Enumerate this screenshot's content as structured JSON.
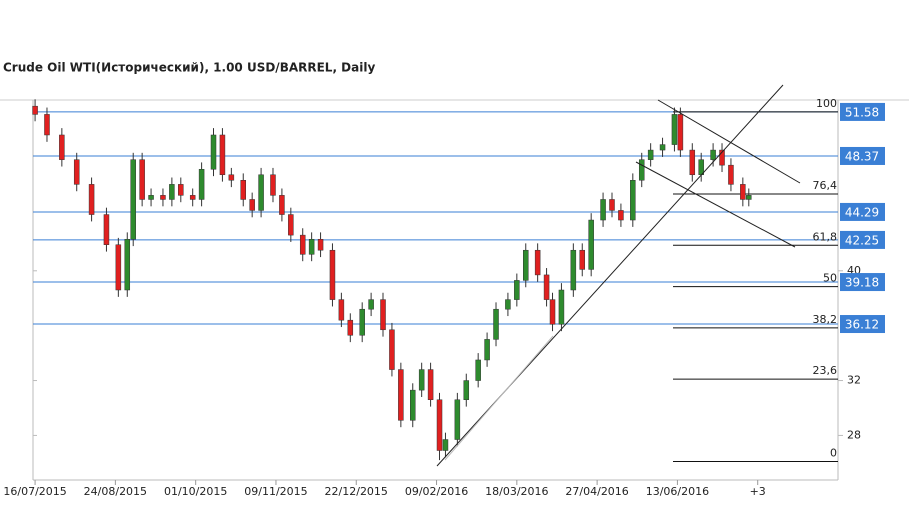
{
  "chart_data": {
    "type": "candlestick",
    "title": "Crude Oil WTI(Исторический), 1.00 USD/BARREL, Daily",
    "x": [
      0,
      4,
      9,
      14,
      19,
      24,
      28,
      31,
      33,
      36,
      39,
      43,
      46,
      49,
      53,
      56,
      60,
      63,
      66,
      70,
      73,
      76,
      80,
      83,
      86,
      90,
      93,
      96,
      100,
      103,
      106,
      110,
      113,
      117,
      120,
      123,
      127,
      130,
      133,
      136,
      138,
      142,
      145,
      149,
      152,
      155,
      159,
      162,
      165,
      169,
      172,
      174,
      177,
      181,
      184,
      187,
      191,
      194,
      197,
      201,
      204,
      207,
      211,
      215,
      217,
      221,
      224,
      228,
      231,
      234,
      238,
      240
    ],
    "open": [
      52.0,
      51.4,
      49.9,
      48.1,
      46.3,
      44.1,
      41.9,
      38.6,
      42.3,
      48.1,
      45.2,
      45.5,
      45.2,
      46.3,
      45.5,
      45.2,
      47.4,
      49.9,
      47.0,
      46.6,
      45.2,
      44.4,
      47.0,
      45.5,
      44.1,
      42.6,
      41.2,
      42.3,
      41.5,
      37.9,
      36.4,
      35.3,
      37.2,
      37.9,
      35.7,
      32.8,
      29.1,
      31.3,
      32.8,
      30.6,
      26.9,
      27.7,
      30.6,
      32.0,
      33.5,
      35.0,
      37.2,
      37.9,
      39.3,
      41.5,
      39.7,
      37.9,
      36.1,
      38.6,
      41.5,
      40.1,
      43.7,
      45.2,
      44.4,
      43.7,
      46.6,
      48.1,
      48.8,
      49.2,
      51.4,
      48.8,
      47.0,
      48.1,
      48.8,
      47.7,
      46.3,
      45.2
    ],
    "high": [
      52.5,
      51.9,
      50.4,
      48.6,
      46.8,
      44.6,
      42.4,
      42.8,
      48.6,
      48.6,
      46.0,
      46.0,
      46.8,
      46.8,
      46.0,
      47.9,
      50.4,
      50.4,
      47.5,
      47.1,
      45.7,
      47.5,
      47.5,
      46.0,
      44.6,
      43.1,
      42.8,
      42.8,
      42.0,
      38.4,
      36.9,
      37.7,
      38.4,
      38.4,
      36.2,
      33.3,
      31.8,
      33.3,
      33.3,
      31.1,
      28.2,
      31.1,
      32.5,
      34.0,
      35.5,
      37.7,
      38.4,
      39.8,
      42.0,
      42.0,
      40.2,
      38.4,
      39.1,
      42.0,
      42.0,
      44.2,
      45.7,
      45.7,
      44.9,
      47.1,
      48.6,
      49.3,
      49.7,
      51.9,
      51.9,
      49.3,
      48.6,
      49.3,
      49.3,
      48.2,
      46.8,
      46.0
    ],
    "low": [
      50.9,
      49.4,
      47.6,
      45.8,
      43.6,
      41.4,
      38.1,
      38.1,
      41.8,
      44.7,
      44.7,
      44.7,
      44.7,
      45.0,
      44.7,
      44.7,
      46.9,
      46.5,
      46.1,
      44.7,
      43.9,
      43.9,
      45.0,
      43.6,
      42.1,
      40.7,
      40.7,
      41.0,
      37.4,
      35.9,
      34.8,
      34.8,
      36.7,
      35.2,
      32.3,
      28.6,
      28.6,
      30.8,
      30.1,
      26.2,
      26.4,
      27.2,
      30.1,
      31.5,
      33.0,
      34.5,
      36.7,
      37.4,
      38.8,
      39.2,
      37.4,
      35.6,
      35.6,
      38.1,
      39.6,
      39.6,
      43.2,
      43.9,
      43.2,
      43.2,
      46.1,
      47.6,
      48.3,
      48.7,
      48.3,
      46.5,
      46.5,
      47.6,
      47.2,
      45.8,
      44.7,
      44.7
    ],
    "close": [
      51.4,
      49.9,
      48.1,
      46.3,
      44.1,
      41.9,
      38.6,
      42.3,
      48.1,
      45.2,
      45.5,
      45.2,
      46.3,
      45.5,
      45.2,
      47.4,
      49.9,
      47.0,
      46.6,
      45.2,
      44.4,
      47.0,
      45.5,
      44.1,
      42.6,
      41.2,
      42.3,
      41.5,
      37.9,
      36.4,
      35.3,
      37.2,
      37.9,
      35.7,
      32.8,
      29.1,
      31.3,
      32.8,
      30.6,
      26.9,
      27.7,
      30.6,
      32.0,
      33.5,
      35.0,
      37.2,
      37.9,
      39.3,
      41.5,
      39.7,
      37.9,
      36.1,
      38.6,
      41.5,
      40.1,
      43.7,
      45.2,
      44.4,
      43.7,
      46.6,
      48.1,
      48.8,
      49.2,
      51.4,
      48.8,
      47.0,
      48.1,
      48.8,
      47.7,
      46.3,
      45.2,
      45.5
    ],
    "up_color": "#2e8b2e",
    "down_color": "#e02020",
    "xlim": [
      -0.7,
      270
    ],
    "ylim": [
      24.75,
      52.45
    ],
    "xticks": [
      {
        "value": 0,
        "label": "16/07/2015"
      },
      {
        "value": 27,
        "label": "24/08/2015"
      },
      {
        "value": 54,
        "label": "01/10/2015"
      },
      {
        "value": 81,
        "label": "09/11/2015"
      },
      {
        "value": 108,
        "label": "22/12/2015"
      },
      {
        "value": 135,
        "label": "09/02/2016"
      },
      {
        "value": 162,
        "label": "18/03/2016"
      },
      {
        "value": 189,
        "label": "27/04/2016"
      },
      {
        "value": 216,
        "label": "13/06/2016"
      },
      {
        "value": 243,
        "label": "+3"
      }
    ],
    "yticks": [
      28,
      32,
      40
    ],
    "levels": [
      51.58,
      48.37,
      44.29,
      42.25,
      39.18,
      36.12
    ],
    "level_color": "#3a7fd5",
    "fib_levels": [
      {
        "level": "100",
        "price": 51.58
      },
      {
        "level": "76,4",
        "price": 45.6
      },
      {
        "level": "61,8",
        "price": 41.86
      },
      {
        "level": "50",
        "price": 38.85
      },
      {
        "level": "38,2",
        "price": 35.84
      },
      {
        "level": "23,6",
        "price": 32.1
      },
      {
        "level": "0",
        "price": 26.1
      }
    ]
  }
}
